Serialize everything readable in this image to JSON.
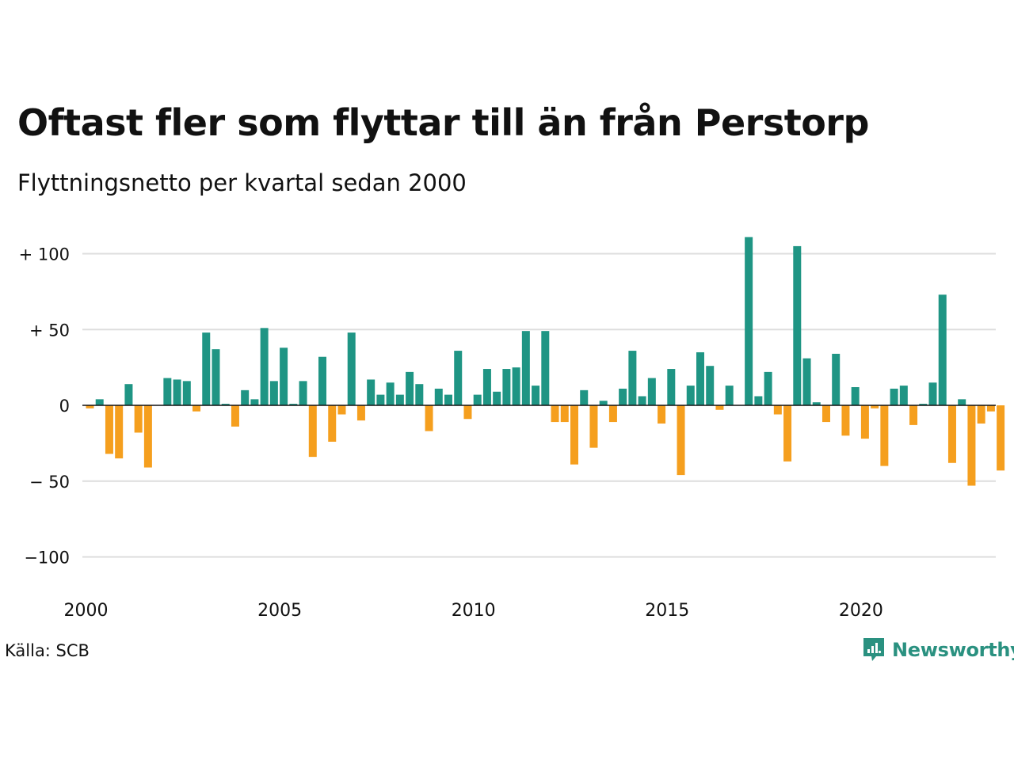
{
  "title": "Oftast fler som flyttar till än från Perstorp",
  "subtitle": "Flyttningsnetto per kvartal sedan 2000",
  "source": "Källa: SCB",
  "brand": "Newsworthy",
  "colors": {
    "positive": "#1f9584",
    "negative": "#f59f1e",
    "grid": "#dddddd",
    "zero": "#111111",
    "brand": "#2a9180"
  },
  "icons": {
    "brand": "newsworthy-bar-chart-icon"
  },
  "chart_data": {
    "type": "bar",
    "title": "Oftast fler som flyttar till än från Perstorp",
    "subtitle": "Flyttningsnetto per kvartal sedan 2000",
    "xlabel": "",
    "ylabel": "",
    "ylim": [
      -120,
      110
    ],
    "y_ticks": [
      {
        "value": 100,
        "label": "+ 100"
      },
      {
        "value": 50,
        "label": "+  50"
      },
      {
        "value": 0,
        "label": "0"
      },
      {
        "value": -50,
        "label": "− 50"
      },
      {
        "value": -100,
        "label": "−100"
      }
    ],
    "x_ticks": [
      {
        "value": 2000,
        "label": "2000"
      },
      {
        "value": 2005,
        "label": "2005"
      },
      {
        "value": 2010,
        "label": "2010"
      },
      {
        "value": 2015,
        "label": "2015"
      },
      {
        "value": 2020,
        "label": "2020"
      }
    ],
    "grid": true,
    "start_year": 2000,
    "periods_per_year": 4,
    "categories": [
      "2000 K1",
      "2000 K2",
      "2000 K3",
      "2000 K4",
      "2001 K1",
      "2001 K2",
      "2001 K3",
      "2001 K4",
      "2002 K1",
      "2002 K2",
      "2002 K3",
      "2002 K4",
      "2003 K1",
      "2003 K2",
      "2003 K3",
      "2003 K4",
      "2004 K1",
      "2004 K2",
      "2004 K3",
      "2004 K4",
      "2005 K1",
      "2005 K2",
      "2005 K3",
      "2005 K4",
      "2006 K1",
      "2006 K2",
      "2006 K3",
      "2006 K4",
      "2007 K1",
      "2007 K2",
      "2007 K3",
      "2007 K4",
      "2008 K1",
      "2008 K2",
      "2008 K3",
      "2008 K4",
      "2009 K1",
      "2009 K2",
      "2009 K3",
      "2009 K4",
      "2010 K1",
      "2010 K2",
      "2010 K3",
      "2010 K4",
      "2011 K1",
      "2011 K2",
      "2011 K3",
      "2011 K4",
      "2012 K1",
      "2012 K2",
      "2012 K3",
      "2012 K4",
      "2013 K1",
      "2013 K2",
      "2013 K3",
      "2013 K4",
      "2014 K1",
      "2014 K2",
      "2014 K3",
      "2014 K4",
      "2015 K1",
      "2015 K2",
      "2015 K3",
      "2015 K4",
      "2016 K1",
      "2016 K2",
      "2016 K3",
      "2016 K4",
      "2017 K1",
      "2017 K2",
      "2017 K3",
      "2017 K4",
      "2018 K1",
      "2018 K2",
      "2018 K3",
      "2018 K4",
      "2019 K1",
      "2019 K2",
      "2019 K3",
      "2019 K4",
      "2020 K1",
      "2020 K2",
      "2020 K3",
      "2020 K4",
      "2021 K1",
      "2021 K2",
      "2021 K3",
      "2021 K4",
      "2022 K1",
      "2022 K2",
      "2022 K3",
      "2022 K4",
      "2023 K1",
      "2023 K2",
      "2023 K3",
      "2023 K4"
    ],
    "values": [
      -2,
      4,
      -32,
      -35,
      14,
      -18,
      -41,
      0,
      18,
      17,
      16,
      -4,
      48,
      37,
      1,
      -14,
      10,
      4,
      51,
      16,
      38,
      1,
      16,
      -34,
      32,
      -24,
      -6,
      48,
      -10,
      17,
      7,
      15,
      7,
      22,
      14,
      -17,
      11,
      7,
      36,
      -9,
      7,
      24,
      9,
      24,
      25,
      49,
      13,
      49,
      -11,
      -11,
      -39,
      10,
      -28,
      3,
      -11,
      11,
      36,
      6,
      18,
      -12,
      24,
      -46,
      13,
      35,
      26,
      -3,
      13,
      0,
      111,
      6,
      22,
      -6,
      -37,
      105,
      31,
      2,
      -11,
      34,
      -20,
      12,
      -22,
      -2,
      -40,
      11,
      13,
      -13,
      1,
      15,
      73,
      -38,
      4,
      -53,
      -12,
      -4,
      -43,
      0
    ]
  }
}
